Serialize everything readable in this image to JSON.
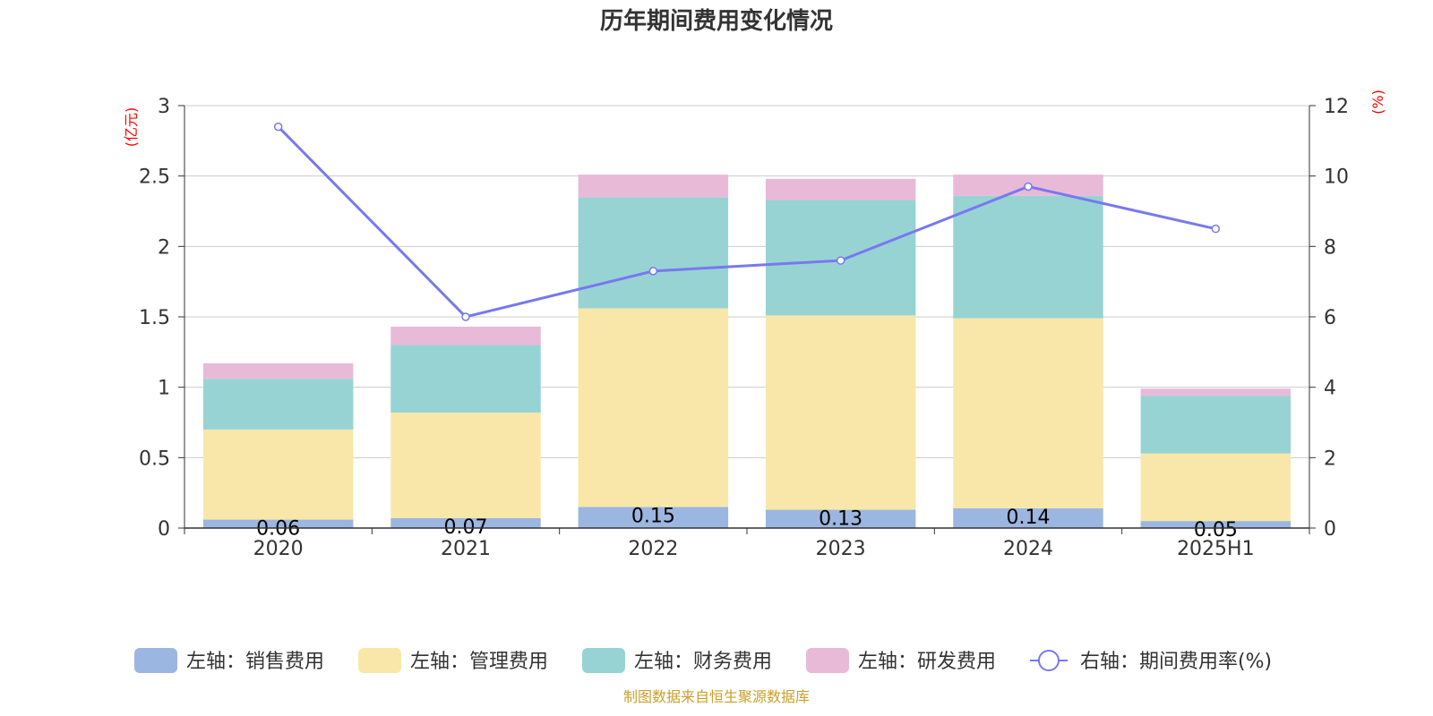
{
  "colors": {
    "sales": "#9bb6e0",
    "admin": "#f8e7a8",
    "finance": "#98d3d4",
    "rd": "#e8bad8",
    "line": "#7878f0",
    "grid": "#cccccc",
    "axis": "#333333",
    "unit": "#ff0000",
    "source": "#c8a02a"
  },
  "chart_data": {
    "type": "bar",
    "stacked": true,
    "title": "历年期间费用变化情况",
    "source": "制图数据来自恒生聚源数据库",
    "left_axis": {
      "unit_label": "(亿元)",
      "ylim": [
        0,
        3
      ],
      "ticks": [
        "0",
        "0.5",
        "1",
        "1.5",
        "2",
        "2.5",
        "3"
      ],
      "tick_values": [
        0,
        0.5,
        1,
        1.5,
        2,
        2.5,
        3
      ]
    },
    "right_axis": {
      "unit_label": "(%)",
      "ylim": [
        0,
        12
      ],
      "ticks": [
        "0",
        "2",
        "4",
        "6",
        "8",
        "10",
        "12"
      ],
      "tick_values": [
        0,
        2,
        4,
        6,
        8,
        10,
        12
      ]
    },
    "categories": [
      "2020",
      "2021",
      "2022",
      "2023",
      "2024",
      "2025H1"
    ],
    "grid": true,
    "legend_position": "bottom",
    "series": [
      {
        "key": "sales",
        "name": "左轴：销售费用",
        "axis": "left",
        "type": "bar",
        "values": [
          0.06,
          0.07,
          0.15,
          0.13,
          0.14,
          0.05
        ],
        "labels": [
          "0.06",
          "0.07",
          "0.15",
          "0.13",
          "0.14",
          "0.05"
        ]
      },
      {
        "key": "admin",
        "name": "左轴：管理费用",
        "axis": "left",
        "type": "bar",
        "values": [
          0.64,
          0.75,
          1.41,
          1.38,
          1.35,
          0.48
        ]
      },
      {
        "key": "finance",
        "name": "左轴：财务费用",
        "axis": "left",
        "type": "bar",
        "values": [
          0.36,
          0.48,
          0.79,
          0.82,
          0.87,
          0.41
        ]
      },
      {
        "key": "rd",
        "name": "左轴：研发费用",
        "axis": "left",
        "type": "bar",
        "values": [
          0.11,
          0.13,
          0.16,
          0.15,
          0.15,
          0.05
        ]
      },
      {
        "key": "line",
        "name": "右轴：期间费用率(%)",
        "axis": "right",
        "type": "line",
        "values": [
          11.4,
          6.0,
          7.3,
          7.6,
          9.7,
          8.5
        ]
      }
    ]
  }
}
